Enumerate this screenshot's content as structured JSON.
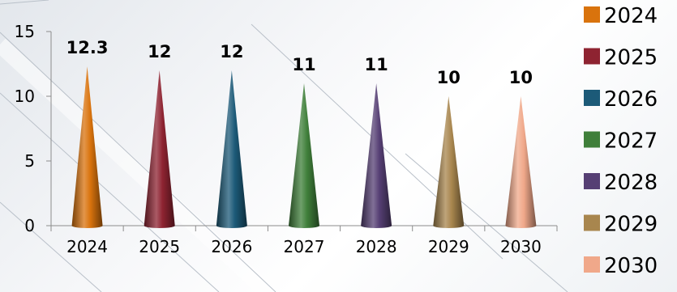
{
  "chart_data": {
    "type": "bar",
    "bar_shape": "cone",
    "categories": [
      "2024",
      "2025",
      "2026",
      "2027",
      "2028",
      "2029",
      "2030"
    ],
    "values": [
      12.3,
      12,
      12,
      11,
      11,
      10,
      10
    ],
    "data_labels": [
      "12.3",
      "12",
      "12",
      "11",
      "11",
      "10",
      "10"
    ],
    "title": "",
    "xlabel": "",
    "ylabel": "",
    "ylim": [
      0,
      15
    ],
    "yticks": [
      0,
      5,
      10,
      15
    ],
    "grid": false,
    "legend": {
      "position": "right",
      "entries": [
        "2024",
        "2025",
        "2026",
        "2027",
        "2028",
        "2029",
        "2030"
      ]
    },
    "colors": [
      "#d9730d",
      "#8e2331",
      "#1c5a78",
      "#3f7f3a",
      "#563f74",
      "#a8864e",
      "#f0a88a"
    ]
  }
}
